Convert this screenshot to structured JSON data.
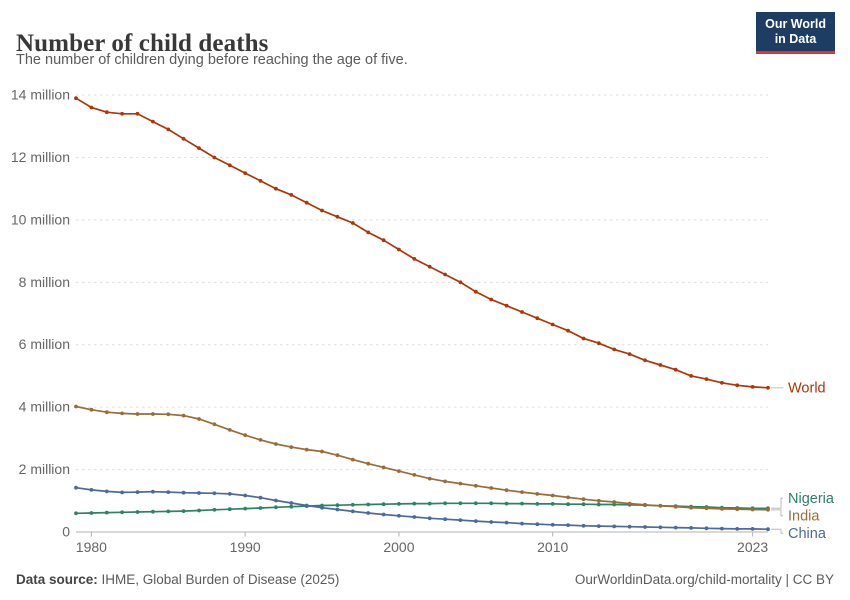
{
  "header": {
    "title": "Number of child deaths",
    "subtitle": "The number of children dying before reaching the age of five."
  },
  "logo": {
    "line1": "Our World",
    "line2": "in Data",
    "bg_color": "#1d3d63",
    "accent_color": "#d73a33"
  },
  "chart_data": {
    "type": "line",
    "title": "Number of child deaths",
    "unit": "million",
    "grid": "horizontal-dashed",
    "legend_position": "right-edge-labels",
    "xlim": [
      1979,
      2024
    ],
    "ylim": [
      0,
      14.4
    ],
    "x": [
      1979,
      1980,
      1981,
      1982,
      1983,
      1984,
      1985,
      1986,
      1987,
      1988,
      1989,
      1990,
      1991,
      1992,
      1993,
      1994,
      1995,
      1996,
      1997,
      1998,
      1999,
      2000,
      2001,
      2002,
      2003,
      2004,
      2005,
      2006,
      2007,
      2008,
      2009,
      2010,
      2011,
      2012,
      2013,
      2014,
      2015,
      2016,
      2017,
      2018,
      2019,
      2020,
      2021,
      2022,
      2023,
      2024
    ],
    "xticks": [
      {
        "v": 1980,
        "label": "1980"
      },
      {
        "v": 1990,
        "label": "1990"
      },
      {
        "v": 2000,
        "label": "2000"
      },
      {
        "v": 2010,
        "label": "2010"
      },
      {
        "v": 2023,
        "label": "2023"
      }
    ],
    "yticks": [
      {
        "v": 0,
        "label": "0"
      },
      {
        "v": 2,
        "label": "2 million"
      },
      {
        "v": 4,
        "label": "4 million"
      },
      {
        "v": 6,
        "label": "6 million"
      },
      {
        "v": 8,
        "label": "8 million"
      },
      {
        "v": 10,
        "label": "10 million"
      },
      {
        "v": 12,
        "label": "12 million"
      },
      {
        "v": 14,
        "label": "14 million"
      }
    ],
    "series": [
      {
        "name": "World",
        "color": "#b13507",
        "values": [
          13.9,
          13.6,
          13.45,
          13.4,
          13.4,
          13.15,
          12.9,
          12.6,
          12.3,
          12.0,
          11.75,
          11.5,
          11.25,
          11.0,
          10.8,
          10.55,
          10.3,
          10.1,
          9.9,
          9.6,
          9.35,
          9.05,
          8.75,
          8.5,
          8.25,
          8.0,
          7.7,
          7.45,
          7.25,
          7.05,
          6.85,
          6.65,
          6.45,
          6.2,
          6.05,
          5.85,
          5.7,
          5.5,
          5.35,
          5.2,
          5.0,
          4.9,
          4.78,
          4.7,
          4.65,
          4.62
        ]
      },
      {
        "name": "Nigeria",
        "color": "#2c8465",
        "values": [
          0.6,
          0.61,
          0.62,
          0.63,
          0.64,
          0.65,
          0.66,
          0.67,
          0.69,
          0.71,
          0.73,
          0.75,
          0.77,
          0.79,
          0.81,
          0.83,
          0.85,
          0.86,
          0.87,
          0.88,
          0.89,
          0.9,
          0.91,
          0.91,
          0.92,
          0.92,
          0.92,
          0.92,
          0.91,
          0.91,
          0.9,
          0.9,
          0.89,
          0.89,
          0.88,
          0.88,
          0.87,
          0.86,
          0.84,
          0.83,
          0.81,
          0.8,
          0.78,
          0.77,
          0.76,
          0.76
        ]
      },
      {
        "name": "India",
        "color": "#996d39",
        "values": [
          4.02,
          3.92,
          3.84,
          3.8,
          3.78,
          3.78,
          3.77,
          3.73,
          3.62,
          3.45,
          3.27,
          3.1,
          2.95,
          2.82,
          2.72,
          2.64,
          2.58,
          2.46,
          2.32,
          2.19,
          2.07,
          1.95,
          1.83,
          1.71,
          1.62,
          1.55,
          1.48,
          1.41,
          1.34,
          1.28,
          1.22,
          1.17,
          1.11,
          1.05,
          1.0,
          0.96,
          0.91,
          0.87,
          0.84,
          0.81,
          0.78,
          0.76,
          0.74,
          0.73,
          0.72,
          0.71
        ]
      },
      {
        "name": "China",
        "color": "#4c6a9c",
        "values": [
          1.42,
          1.35,
          1.3,
          1.27,
          1.28,
          1.29,
          1.28,
          1.26,
          1.25,
          1.24,
          1.22,
          1.17,
          1.1,
          1.01,
          0.93,
          0.85,
          0.78,
          0.72,
          0.66,
          0.61,
          0.56,
          0.52,
          0.48,
          0.44,
          0.41,
          0.38,
          0.35,
          0.32,
          0.3,
          0.27,
          0.25,
          0.23,
          0.22,
          0.2,
          0.19,
          0.18,
          0.17,
          0.16,
          0.15,
          0.14,
          0.13,
          0.12,
          0.11,
          0.1,
          0.1,
          0.09
        ]
      }
    ]
  },
  "footer": {
    "source_label": "Data source:",
    "source_text": " IHME, Global Burden of Disease (2025)",
    "link_text": "OurWorldinData.org/child-mortality | CC BY"
  }
}
